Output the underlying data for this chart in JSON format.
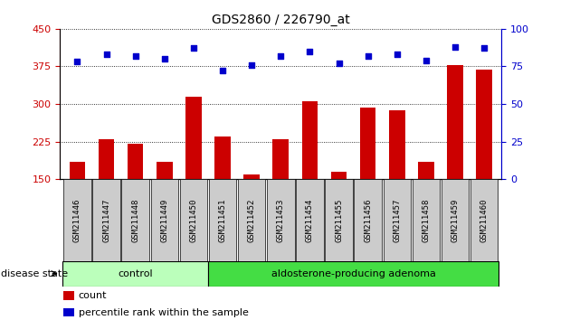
{
  "title": "GDS2860 / 226790_at",
  "categories": [
    "GSM211446",
    "GSM211447",
    "GSM211448",
    "GSM211449",
    "GSM211450",
    "GSM211451",
    "GSM211452",
    "GSM211453",
    "GSM211454",
    "GSM211455",
    "GSM211456",
    "GSM211457",
    "GSM211458",
    "GSM211459",
    "GSM211460"
  ],
  "bar_values": [
    185,
    230,
    220,
    185,
    315,
    235,
    160,
    230,
    305,
    165,
    293,
    288,
    185,
    378,
    368
  ],
  "percentile_values": [
    78,
    83,
    82,
    80,
    87,
    72,
    76,
    82,
    85,
    77,
    82,
    83,
    79,
    88,
    87
  ],
  "control_count": 5,
  "adenoma_count": 10,
  "ylim_left": [
    150,
    450
  ],
  "ylim_right": [
    0,
    100
  ],
  "yticks_left": [
    150,
    225,
    300,
    375,
    450
  ],
  "yticks_right": [
    0,
    25,
    50,
    75,
    100
  ],
  "bar_color": "#cc0000",
  "dot_color": "#0000cc",
  "control_color": "#bbffbb",
  "adenoma_color": "#44dd44",
  "tick_bg_color": "#cccccc",
  "control_label": "control",
  "adenoma_label": "aldosterone-producing adenoma",
  "legend_count_label": "count",
  "legend_pct_label": "percentile rank within the sample",
  "disease_state_label": "disease state"
}
